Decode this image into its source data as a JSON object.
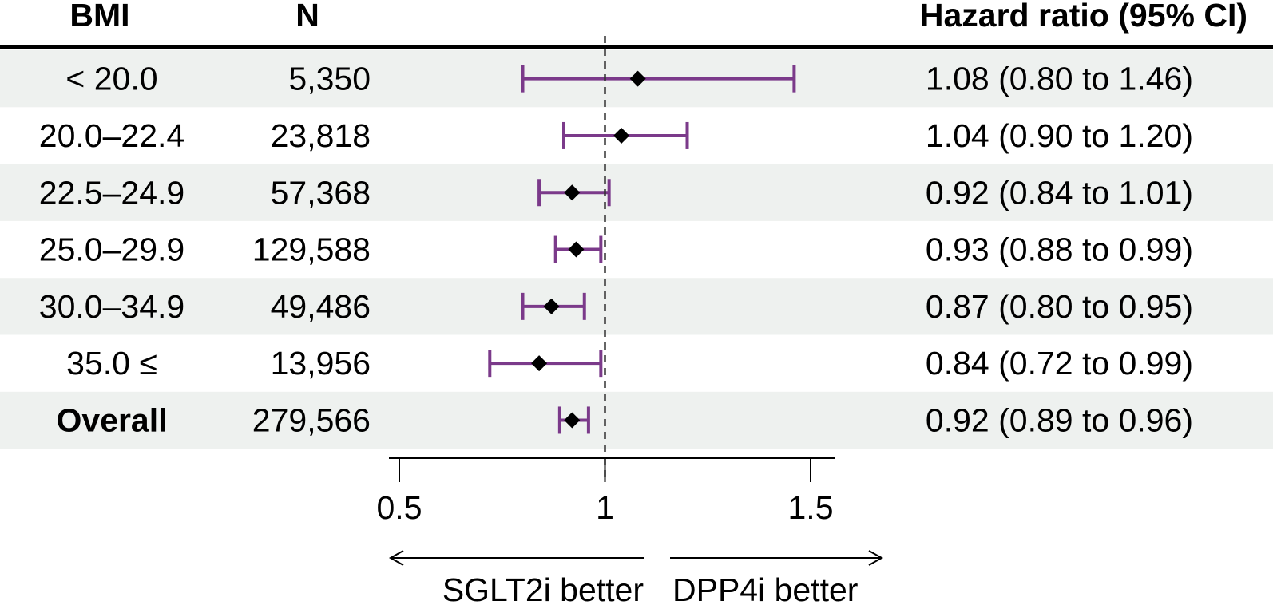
{
  "headers": {
    "bmi": "BMI",
    "n": "N",
    "hr": "Hazard ratio (95% CI)"
  },
  "chart_data": {
    "type": "forest",
    "x_scale": "linear",
    "x_ticks": [
      0.5,
      1,
      1.5
    ],
    "x_tick_labels": [
      "0.5",
      "1",
      "1.5"
    ],
    "xlim": [
      0.5,
      1.5
    ],
    "reference_line": 1,
    "direction_labels": {
      "left": "SGLT2i better",
      "right": "DPP4i better"
    },
    "rows": [
      {
        "bmi": "< 20.0",
        "n": "5,350",
        "hr": 1.08,
        "lower": 0.8,
        "upper": 1.46,
        "hr_text": "1.08 (0.80 to 1.46)",
        "bold": false
      },
      {
        "bmi": "20.0–22.4",
        "n": "23,818",
        "hr": 1.04,
        "lower": 0.9,
        "upper": 1.2,
        "hr_text": "1.04 (0.90 to 1.20)",
        "bold": false
      },
      {
        "bmi": "22.5–24.9",
        "n": "57,368",
        "hr": 0.92,
        "lower": 0.84,
        "upper": 1.01,
        "hr_text": "0.92 (0.84 to 1.01)",
        "bold": false
      },
      {
        "bmi": "25.0–29.9",
        "n": "129,588",
        "hr": 0.93,
        "lower": 0.88,
        "upper": 0.99,
        "hr_text": "0.93 (0.88 to 0.99)",
        "bold": false
      },
      {
        "bmi": "30.0–34.9",
        "n": "49,486",
        "hr": 0.87,
        "lower": 0.8,
        "upper": 0.95,
        "hr_text": "0.87 (0.80 to 0.95)",
        "bold": false
      },
      {
        "bmi": "35.0 ≤",
        "n": "13,956",
        "hr": 0.84,
        "lower": 0.72,
        "upper": 0.99,
        "hr_text": "0.84 (0.72 to 0.99)",
        "bold": false
      },
      {
        "bmi": "Overall",
        "n": "279,566",
        "hr": 0.92,
        "lower": 0.89,
        "upper": 0.96,
        "hr_text": "0.92 (0.89 to 0.96)",
        "bold": true
      }
    ],
    "colors": {
      "ci": "#7b3a8a",
      "point": "#000000",
      "stripe": "#eef1ef",
      "rule": "#000000"
    }
  }
}
